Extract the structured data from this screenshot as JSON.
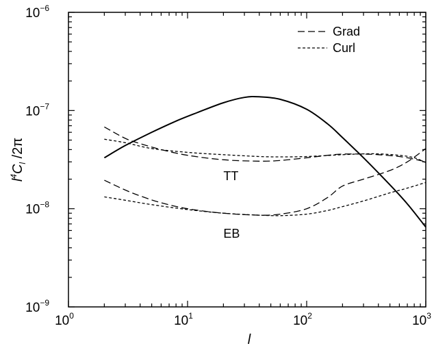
{
  "chart_data": {
    "type": "line",
    "xlabel": "l",
    "ylabel": {
      "main": "l",
      "sup": "4",
      "c": "C",
      "sub": "l",
      "tail": " /2π"
    },
    "xscale": "log",
    "yscale": "log",
    "xlim": [
      1,
      1000
    ],
    "ylim": [
      1e-09,
      1e-06
    ],
    "x_ticks": [
      {
        "value": 1,
        "base": "10",
        "exp": "0"
      },
      {
        "value": 10,
        "base": "10",
        "exp": "1"
      },
      {
        "value": 100,
        "base": "10",
        "exp": "2"
      },
      {
        "value": 1000,
        "base": "10",
        "exp": "3"
      }
    ],
    "y_ticks": [
      {
        "value": 1e-09,
        "base": "10",
        "exp": "−9"
      },
      {
        "value": 1e-08,
        "base": "10",
        "exp": "−8"
      },
      {
        "value": 1e-07,
        "base": "10",
        "exp": "−7"
      },
      {
        "value": 1e-06,
        "base": "10",
        "exp": "−6"
      }
    ],
    "legend": {
      "placement": "top-right",
      "entries": [
        {
          "label": "Grad",
          "style": "long-dash"
        },
        {
          "label": "Curl",
          "style": "short-dash"
        }
      ]
    },
    "annotations": [
      {
        "text": "TT",
        "x": 20,
        "y": 2.15e-08
      },
      {
        "text": "EB",
        "x": 20,
        "y": 5.6e-09
      }
    ],
    "series": [
      {
        "style": "solid",
        "x": [
          2,
          3,
          5,
          8,
          12,
          20,
          30,
          40,
          60,
          100,
          150,
          200,
          300,
          500,
          700,
          1000
        ],
        "y": [
          3.3e-08,
          4.4e-08,
          6e-08,
          7.8e-08,
          9.5e-08,
          1.2e-07,
          1.36e-07,
          1.38e-07,
          1.3e-07,
          1.03e-07,
          7.3e-08,
          5.3e-08,
          3.3e-08,
          1.75e-08,
          1.12e-08,
          6.5e-09
        ]
      },
      {
        "style": "long-dash",
        "x": [
          2,
          3,
          4,
          6,
          10,
          20,
          40,
          60,
          100,
          150,
          200,
          300,
          400,
          600,
          800,
          1000
        ],
        "y": [
          6.8e-08,
          5.2e-08,
          4.6e-08,
          4e-08,
          3.5e-08,
          3.15e-08,
          3.05e-08,
          3.1e-08,
          3.3e-08,
          3.5e-08,
          3.6e-08,
          3.6e-08,
          3.55e-08,
          3.4e-08,
          3.2e-08,
          3e-08
        ]
      },
      {
        "style": "short-dash",
        "x": [
          2,
          3,
          5,
          10,
          20,
          40,
          60,
          100,
          200,
          300,
          400,
          600,
          800,
          1000
        ],
        "y": [
          5.1e-08,
          4.7e-08,
          4.1e-08,
          3.75e-08,
          3.55e-08,
          3.4e-08,
          3.37e-08,
          3.4e-08,
          3.55e-08,
          3.62e-08,
          3.62e-08,
          3.5e-08,
          3.3e-08,
          2.95e-08
        ]
      },
      {
        "style": "long-dash",
        "x": [
          2,
          3,
          4,
          6,
          10,
          20,
          40,
          60,
          100,
          150,
          200,
          300,
          500,
          700,
          1000
        ],
        "y": [
          1.95e-08,
          1.55e-08,
          1.35e-08,
          1.15e-08,
          1e-08,
          9e-09,
          8.6e-09,
          8.8e-09,
          1e-08,
          1.3e-08,
          1.7e-08,
          2e-08,
          2.45e-08,
          3e-08,
          4.1e-08
        ]
      },
      {
        "style": "short-dash",
        "x": [
          2,
          3,
          5,
          10,
          20,
          40,
          60,
          100,
          150,
          200,
          300,
          500,
          700,
          1000
        ],
        "y": [
          1.32e-08,
          1.22e-08,
          1.1e-08,
          9.8e-09,
          9e-09,
          8.6e-09,
          8.5e-09,
          8.8e-09,
          9.6e-09,
          1.05e-08,
          1.2e-08,
          1.45e-08,
          1.62e-08,
          1.85e-08
        ]
      }
    ]
  }
}
